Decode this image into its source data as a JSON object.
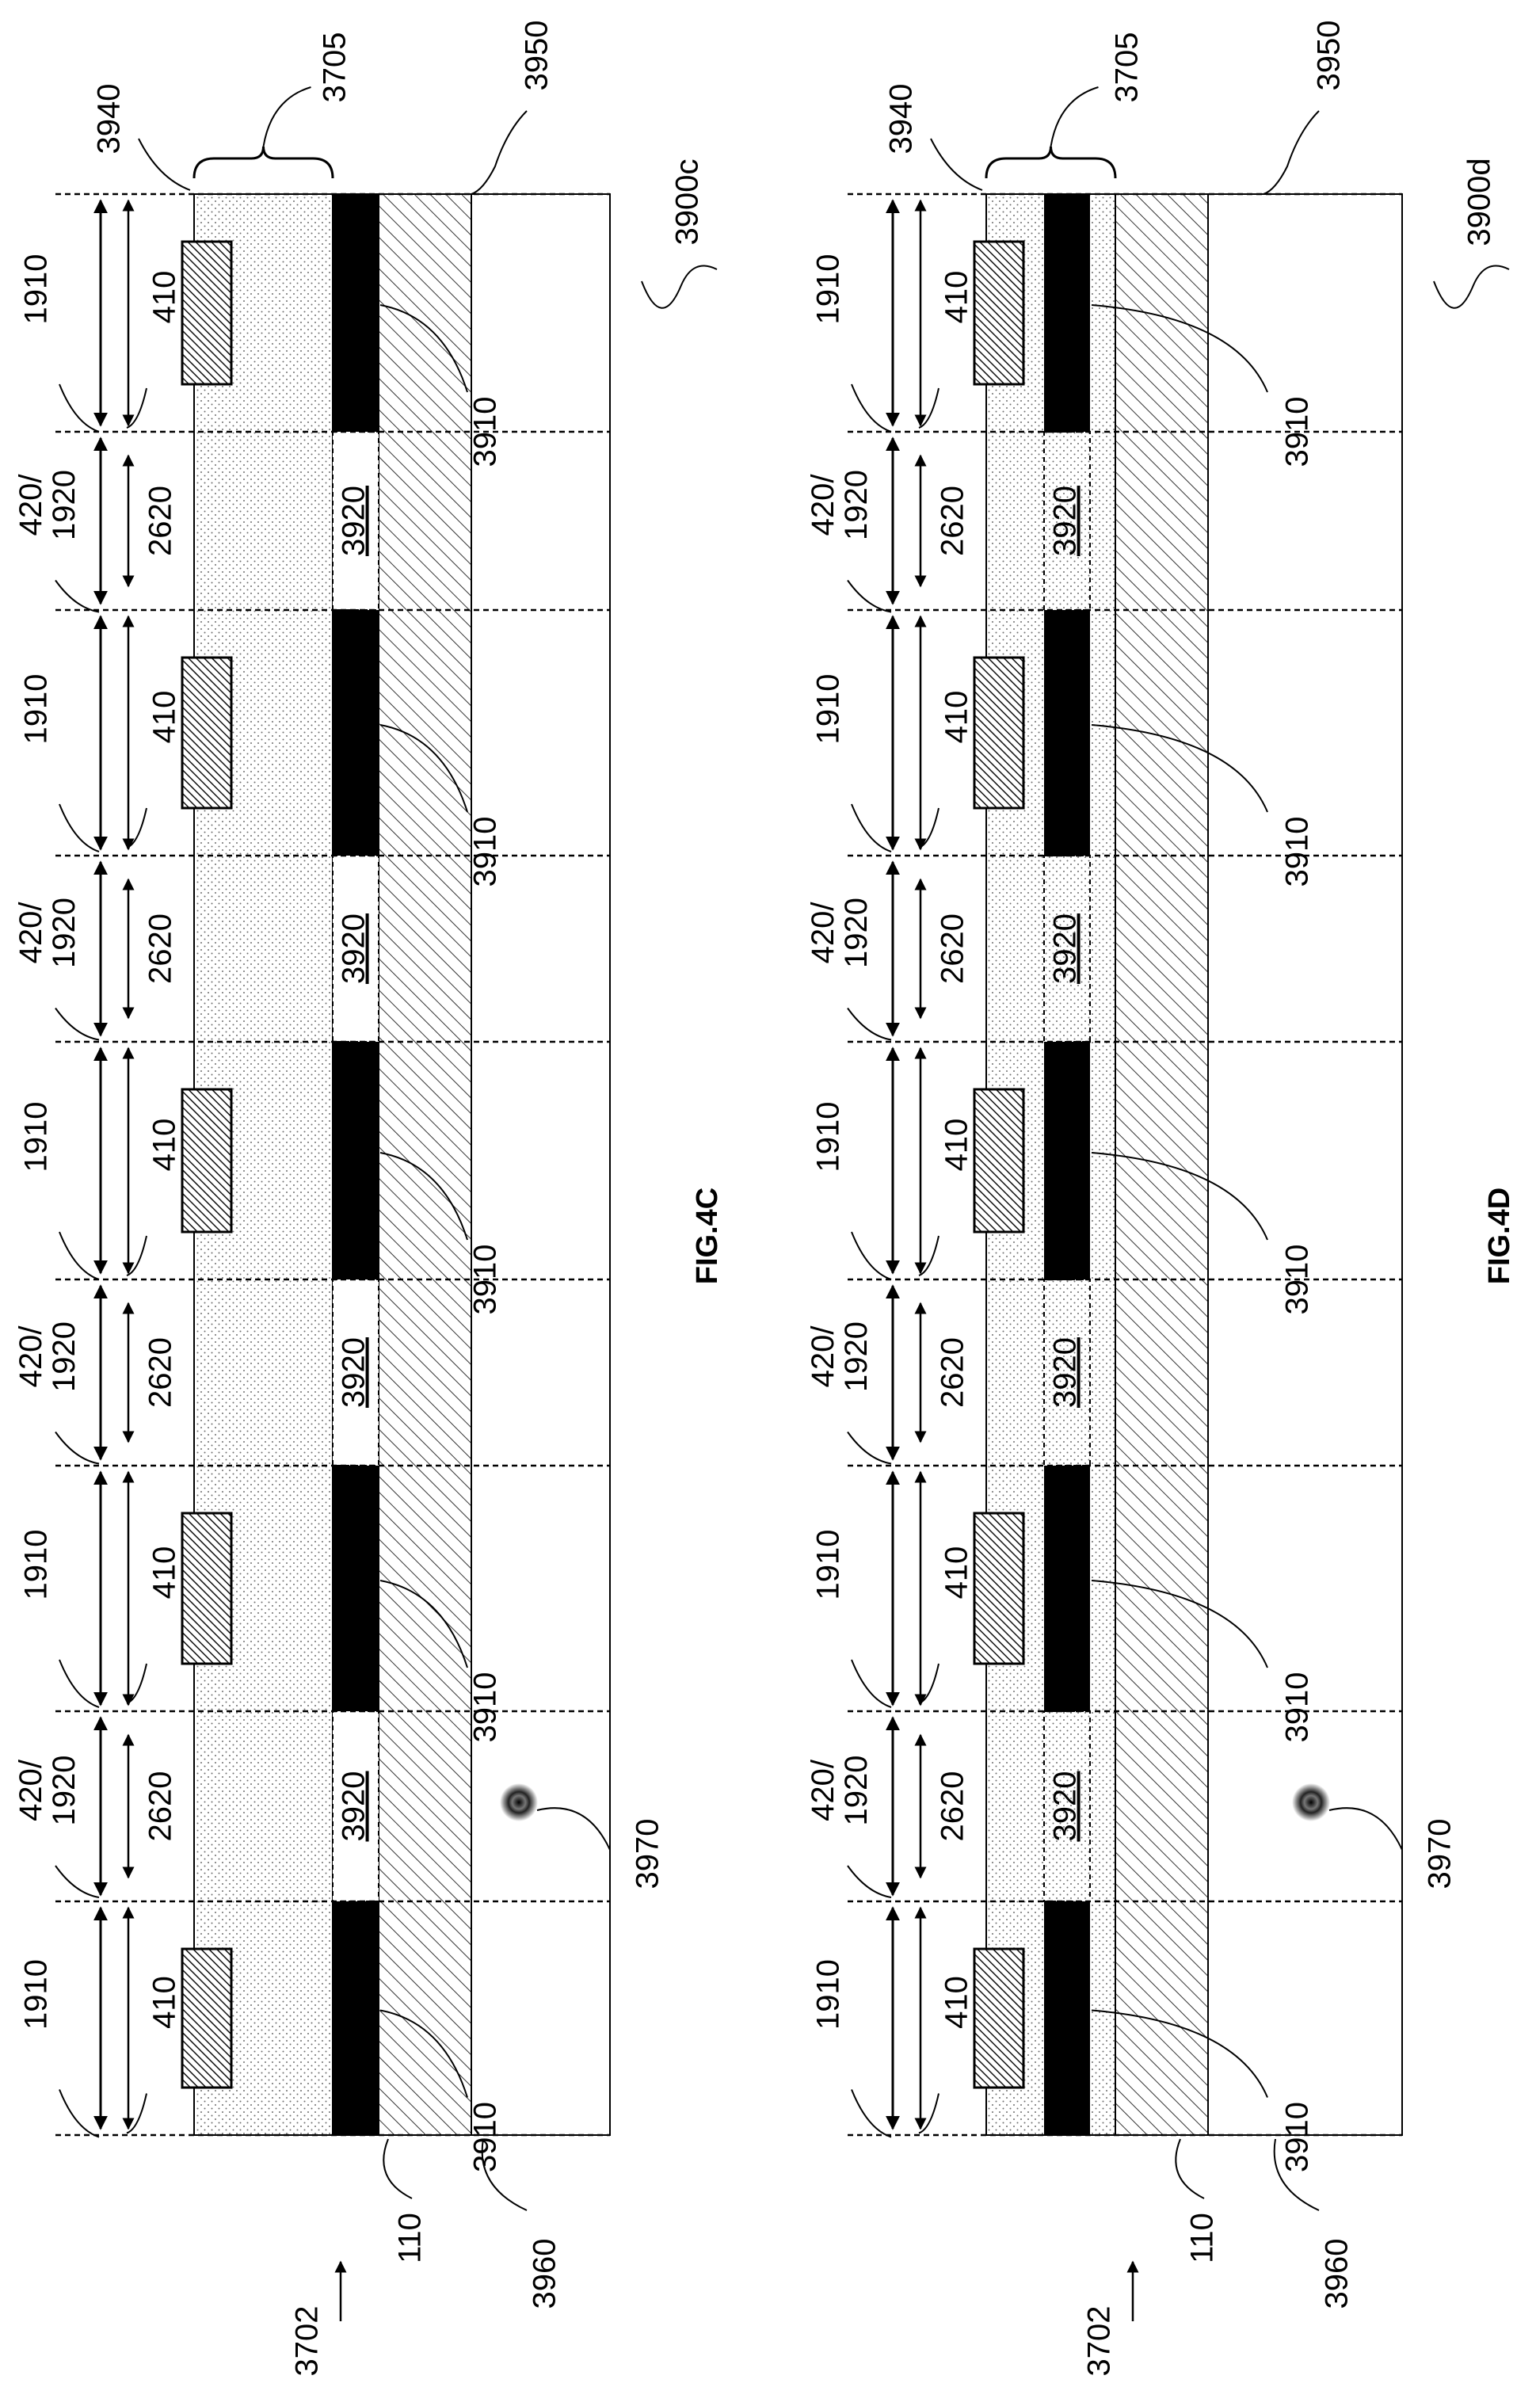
{
  "figures": [
    {
      "id": "4C",
      "caption": "FIG.4C",
      "ref_device": "3900c",
      "ref_group": "3705",
      "ref_top_layer": "3940",
      "ref_substrate_top": "3950",
      "ref_substrate_bottom": "3960",
      "ref_layer_110": "110",
      "ref_arrow": "3702",
      "ref_particle": "3970",
      "ref_electrode": "3910",
      "ref_gap": "3920",
      "ref_pixel_outer": "1910",
      "ref_pixel_inner": "410",
      "ref_gap_outer": "420/ 1920",
      "ref_gap_inner": "2620"
    },
    {
      "id": "4D",
      "caption": "FIG.4D",
      "ref_device": "3900d",
      "ref_group": "3705",
      "ref_top_layer": "3940",
      "ref_substrate_top": "3950",
      "ref_substrate_bottom": "3960",
      "ref_layer_110": "110",
      "ref_arrow": "3702",
      "ref_particle": "3970",
      "ref_electrode": "3910",
      "ref_gap": "3920",
      "ref_pixel_outer": "1910",
      "ref_pixel_inner": "410",
      "ref_gap_outer": "420/ 1920",
      "ref_gap_inner": "2620"
    }
  ]
}
